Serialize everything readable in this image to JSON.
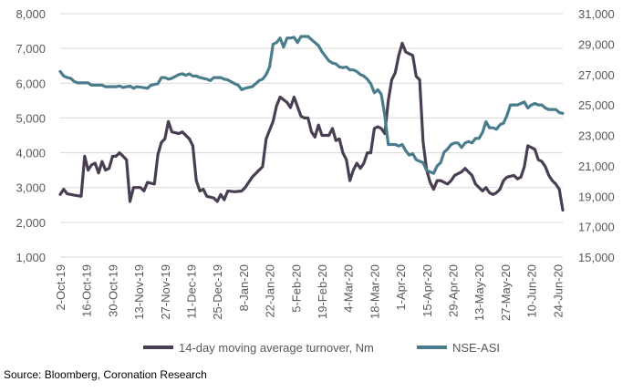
{
  "chart_data": {
    "type": "line",
    "title": "",
    "xlabel": "",
    "ylabel": "",
    "y_left": {
      "range": [
        1000,
        8000
      ],
      "ticks": [
        "1,000",
        "2,000",
        "3,000",
        "4,000",
        "5,000",
        "6,000",
        "7,000",
        "8,000"
      ]
    },
    "y_right": {
      "range": [
        15000,
        31000
      ],
      "ticks": [
        "15,000",
        "17,000",
        "19,000",
        "21,000",
        "23,000",
        "25,000",
        "27,000",
        "29,000",
        "31,000"
      ]
    },
    "x_ticks": [
      "2-Oct-19",
      "16-Oct-19",
      "30-Oct-19",
      "13-Nov-19",
      "27-Nov-19",
      "11-Dec-19",
      "25-Dec-19",
      "8-Jan-20",
      "22-Jan-20",
      "5-Feb-20",
      "19-Feb-20",
      "4-Mar-20",
      "18-Mar-20",
      "1-Apr-20",
      "15-Apr-20",
      "29-Apr-20",
      "13-May-20",
      "27-May-20",
      "10-Jun-20",
      "24-Jun-20"
    ],
    "grid": true,
    "legend_position": "bottom",
    "series": [
      {
        "name": "14-day moving average turnover, Nm",
        "axis": "left",
        "color": "#4a3f52",
        "points": [
          [
            0,
            2800
          ],
          [
            1,
            2950
          ],
          [
            2,
            2820
          ],
          [
            4,
            2780
          ],
          [
            6,
            2750
          ],
          [
            7,
            3900
          ],
          [
            8,
            3500
          ],
          [
            9,
            3650
          ],
          [
            10,
            3700
          ],
          [
            11,
            3420
          ],
          [
            12,
            3750
          ],
          [
            13,
            3500
          ],
          [
            14,
            3550
          ],
          [
            15,
            3900
          ],
          [
            16,
            3900
          ],
          [
            17,
            4000
          ],
          [
            18,
            3900
          ],
          [
            19,
            3800
          ],
          [
            20,
            2600
          ],
          [
            21,
            3000
          ],
          [
            23,
            3000
          ],
          [
            24,
            2900
          ],
          [
            25,
            3150
          ],
          [
            27,
            3100
          ],
          [
            28,
            3950
          ],
          [
            29,
            4300
          ],
          [
            30,
            4400
          ],
          [
            31,
            4900
          ],
          [
            32,
            4600
          ],
          [
            34,
            4550
          ],
          [
            35,
            4600
          ],
          [
            37,
            4400
          ],
          [
            38,
            4200
          ],
          [
            39,
            3200
          ],
          [
            40,
            2900
          ],
          [
            41,
            2950
          ],
          [
            42,
            2750
          ],
          [
            44,
            2700
          ],
          [
            45,
            2600
          ],
          [
            46,
            2800
          ],
          [
            47,
            2650
          ],
          [
            48,
            2900
          ],
          [
            50,
            2880
          ],
          [
            52,
            2900
          ],
          [
            53,
            3000
          ],
          [
            55,
            3300
          ],
          [
            57,
            3500
          ],
          [
            58,
            3600
          ],
          [
            59,
            4400
          ],
          [
            61,
            4900
          ],
          [
            62,
            5350
          ],
          [
            63,
            5600
          ],
          [
            65,
            5450
          ],
          [
            66,
            5300
          ],
          [
            67,
            5600
          ],
          [
            69,
            5050
          ],
          [
            70,
            5000
          ],
          [
            71,
            5000
          ],
          [
            72,
            4600
          ],
          [
            73,
            4450
          ],
          [
            74,
            4800
          ],
          [
            75,
            4500
          ],
          [
            77,
            4500
          ],
          [
            78,
            4700
          ],
          [
            79,
            4350
          ],
          [
            80,
            4400
          ],
          [
            81,
            4000
          ],
          [
            82,
            3800
          ],
          [
            83,
            3200
          ],
          [
            84,
            3500
          ],
          [
            85,
            3700
          ],
          [
            86,
            3550
          ],
          [
            87,
            3700
          ],
          [
            88,
            4000
          ],
          [
            89,
            4000
          ],
          [
            90,
            4700
          ],
          [
            91,
            4750
          ],
          [
            92,
            4700
          ],
          [
            93,
            4550
          ],
          [
            94,
            5500
          ],
          [
            95,
            6100
          ],
          [
            96,
            6300
          ],
          [
            97,
            6800
          ],
          [
            98,
            7150
          ],
          [
            99,
            6900
          ],
          [
            100,
            6850
          ],
          [
            101,
            6800
          ],
          [
            102,
            6200
          ],
          [
            103,
            6100
          ],
          [
            104,
            4300
          ],
          [
            105,
            3500
          ],
          [
            106,
            3150
          ],
          [
            107,
            2950
          ],
          [
            108,
            3200
          ],
          [
            109,
            3200
          ],
          [
            111,
            3100
          ],
          [
            112,
            3200
          ],
          [
            113,
            3350
          ],
          [
            115,
            3450
          ],
          [
            116,
            3550
          ],
          [
            117,
            3450
          ],
          [
            118,
            3350
          ],
          [
            119,
            3100
          ],
          [
            120,
            3000
          ],
          [
            121,
            2900
          ],
          [
            122,
            3000
          ],
          [
            123,
            2850
          ],
          [
            124,
            2800
          ],
          [
            125,
            2850
          ],
          [
            126,
            2950
          ],
          [
            127,
            3200
          ],
          [
            128,
            3300
          ],
          [
            130,
            3350
          ],
          [
            131,
            3250
          ],
          [
            132,
            3300
          ],
          [
            133,
            3600
          ],
          [
            134,
            4200
          ],
          [
            135,
            4150
          ],
          [
            136,
            4100
          ],
          [
            137,
            3800
          ],
          [
            138,
            3750
          ],
          [
            139,
            3600
          ],
          [
            140,
            3350
          ],
          [
            141,
            3200
          ],
          [
            142,
            3100
          ],
          [
            143,
            2950
          ],
          [
            144,
            2350
          ]
        ]
      },
      {
        "name": "NSE-ASI",
        "axis": "right",
        "color": "#4a7d8c",
        "points": [
          [
            0,
            27200
          ],
          [
            1,
            26900
          ],
          [
            2,
            26800
          ],
          [
            3,
            26750
          ],
          [
            4,
            26550
          ],
          [
            5,
            26450
          ],
          [
            8,
            26450
          ],
          [
            9,
            26300
          ],
          [
            12,
            26300
          ],
          [
            13,
            26200
          ],
          [
            16,
            26200
          ],
          [
            17,
            26250
          ],
          [
            18,
            26150
          ],
          [
            20,
            26250
          ],
          [
            21,
            26100
          ],
          [
            22,
            26200
          ],
          [
            25,
            26100
          ],
          [
            26,
            26300
          ],
          [
            28,
            26400
          ],
          [
            29,
            26800
          ],
          [
            30,
            26800
          ],
          [
            31,
            26700
          ],
          [
            32,
            26750
          ],
          [
            34,
            27000
          ],
          [
            35,
            27050
          ],
          [
            36,
            26950
          ],
          [
            37,
            27050
          ],
          [
            38,
            26900
          ],
          [
            39,
            26900
          ],
          [
            40,
            26800
          ],
          [
            42,
            26700
          ],
          [
            43,
            26600
          ],
          [
            44,
            26800
          ],
          [
            46,
            26800
          ],
          [
            47,
            26700
          ],
          [
            48,
            26650
          ],
          [
            50,
            26400
          ],
          [
            51,
            26300
          ],
          [
            52,
            26000
          ],
          [
            53,
            26100
          ],
          [
            55,
            26200
          ],
          [
            56,
            26400
          ],
          [
            57,
            26600
          ],
          [
            58,
            26700
          ],
          [
            59,
            27000
          ],
          [
            60,
            27500
          ],
          [
            61,
            29000
          ],
          [
            62,
            29100
          ],
          [
            63,
            29400
          ],
          [
            64,
            28800
          ],
          [
            65,
            29400
          ],
          [
            66,
            29400
          ],
          [
            67,
            29450
          ],
          [
            68,
            29100
          ],
          [
            69,
            29500
          ],
          [
            71,
            29500
          ],
          [
            72,
            29300
          ],
          [
            73,
            29100
          ],
          [
            74,
            28900
          ],
          [
            75,
            28500
          ],
          [
            76,
            28200
          ],
          [
            77,
            27900
          ],
          [
            78,
            27750
          ],
          [
            79,
            27700
          ],
          [
            80,
            27500
          ],
          [
            81,
            27450
          ],
          [
            82,
            27500
          ],
          [
            83,
            27300
          ],
          [
            84,
            27300
          ],
          [
            85,
            27200
          ],
          [
            86,
            27000
          ],
          [
            87,
            26900
          ],
          [
            88,
            26700
          ],
          [
            89,
            26400
          ],
          [
            90,
            25800
          ],
          [
            91,
            26000
          ],
          [
            92,
            25700
          ],
          [
            93,
            24300
          ],
          [
            94,
            22400
          ],
          [
            96,
            22400
          ],
          [
            97,
            22300
          ],
          [
            98,
            22400
          ],
          [
            99,
            22000
          ],
          [
            100,
            21700
          ],
          [
            101,
            21800
          ],
          [
            102,
            21400
          ],
          [
            103,
            21300
          ],
          [
            104,
            21200
          ],
          [
            105,
            20700
          ],
          [
            106,
            20600
          ],
          [
            107,
            20500
          ],
          [
            108,
            21000
          ],
          [
            109,
            21200
          ],
          [
            110,
            21900
          ],
          [
            111,
            22100
          ],
          [
            112,
            22400
          ],
          [
            113,
            22500
          ],
          [
            114,
            22500
          ],
          [
            115,
            22200
          ],
          [
            116,
            22500
          ],
          [
            117,
            22600
          ],
          [
            118,
            22500
          ],
          [
            119,
            22800
          ],
          [
            120,
            22800
          ],
          [
            121,
            23200
          ],
          [
            122,
            23900
          ],
          [
            123,
            23500
          ],
          [
            124,
            23500
          ],
          [
            125,
            23400
          ],
          [
            126,
            23700
          ],
          [
            127,
            23800
          ],
          [
            128,
            24300
          ],
          [
            129,
            25000
          ],
          [
            131,
            25000
          ],
          [
            132,
            25100
          ],
          [
            133,
            25200
          ],
          [
            134,
            24800
          ],
          [
            135,
            25000
          ],
          [
            136,
            25100
          ],
          [
            137,
            25000
          ],
          [
            138,
            25000
          ],
          [
            139,
            24800
          ],
          [
            140,
            24700
          ],
          [
            141,
            24700
          ],
          [
            142,
            24700
          ],
          [
            143,
            24500
          ],
          [
            144,
            24450
          ]
        ]
      }
    ]
  },
  "legend": {
    "turnover_label": "14-day moving average turnover, Nm",
    "asi_label": "NSE-ASI"
  },
  "source_note": "Source: Bloomberg, Coronation Research"
}
